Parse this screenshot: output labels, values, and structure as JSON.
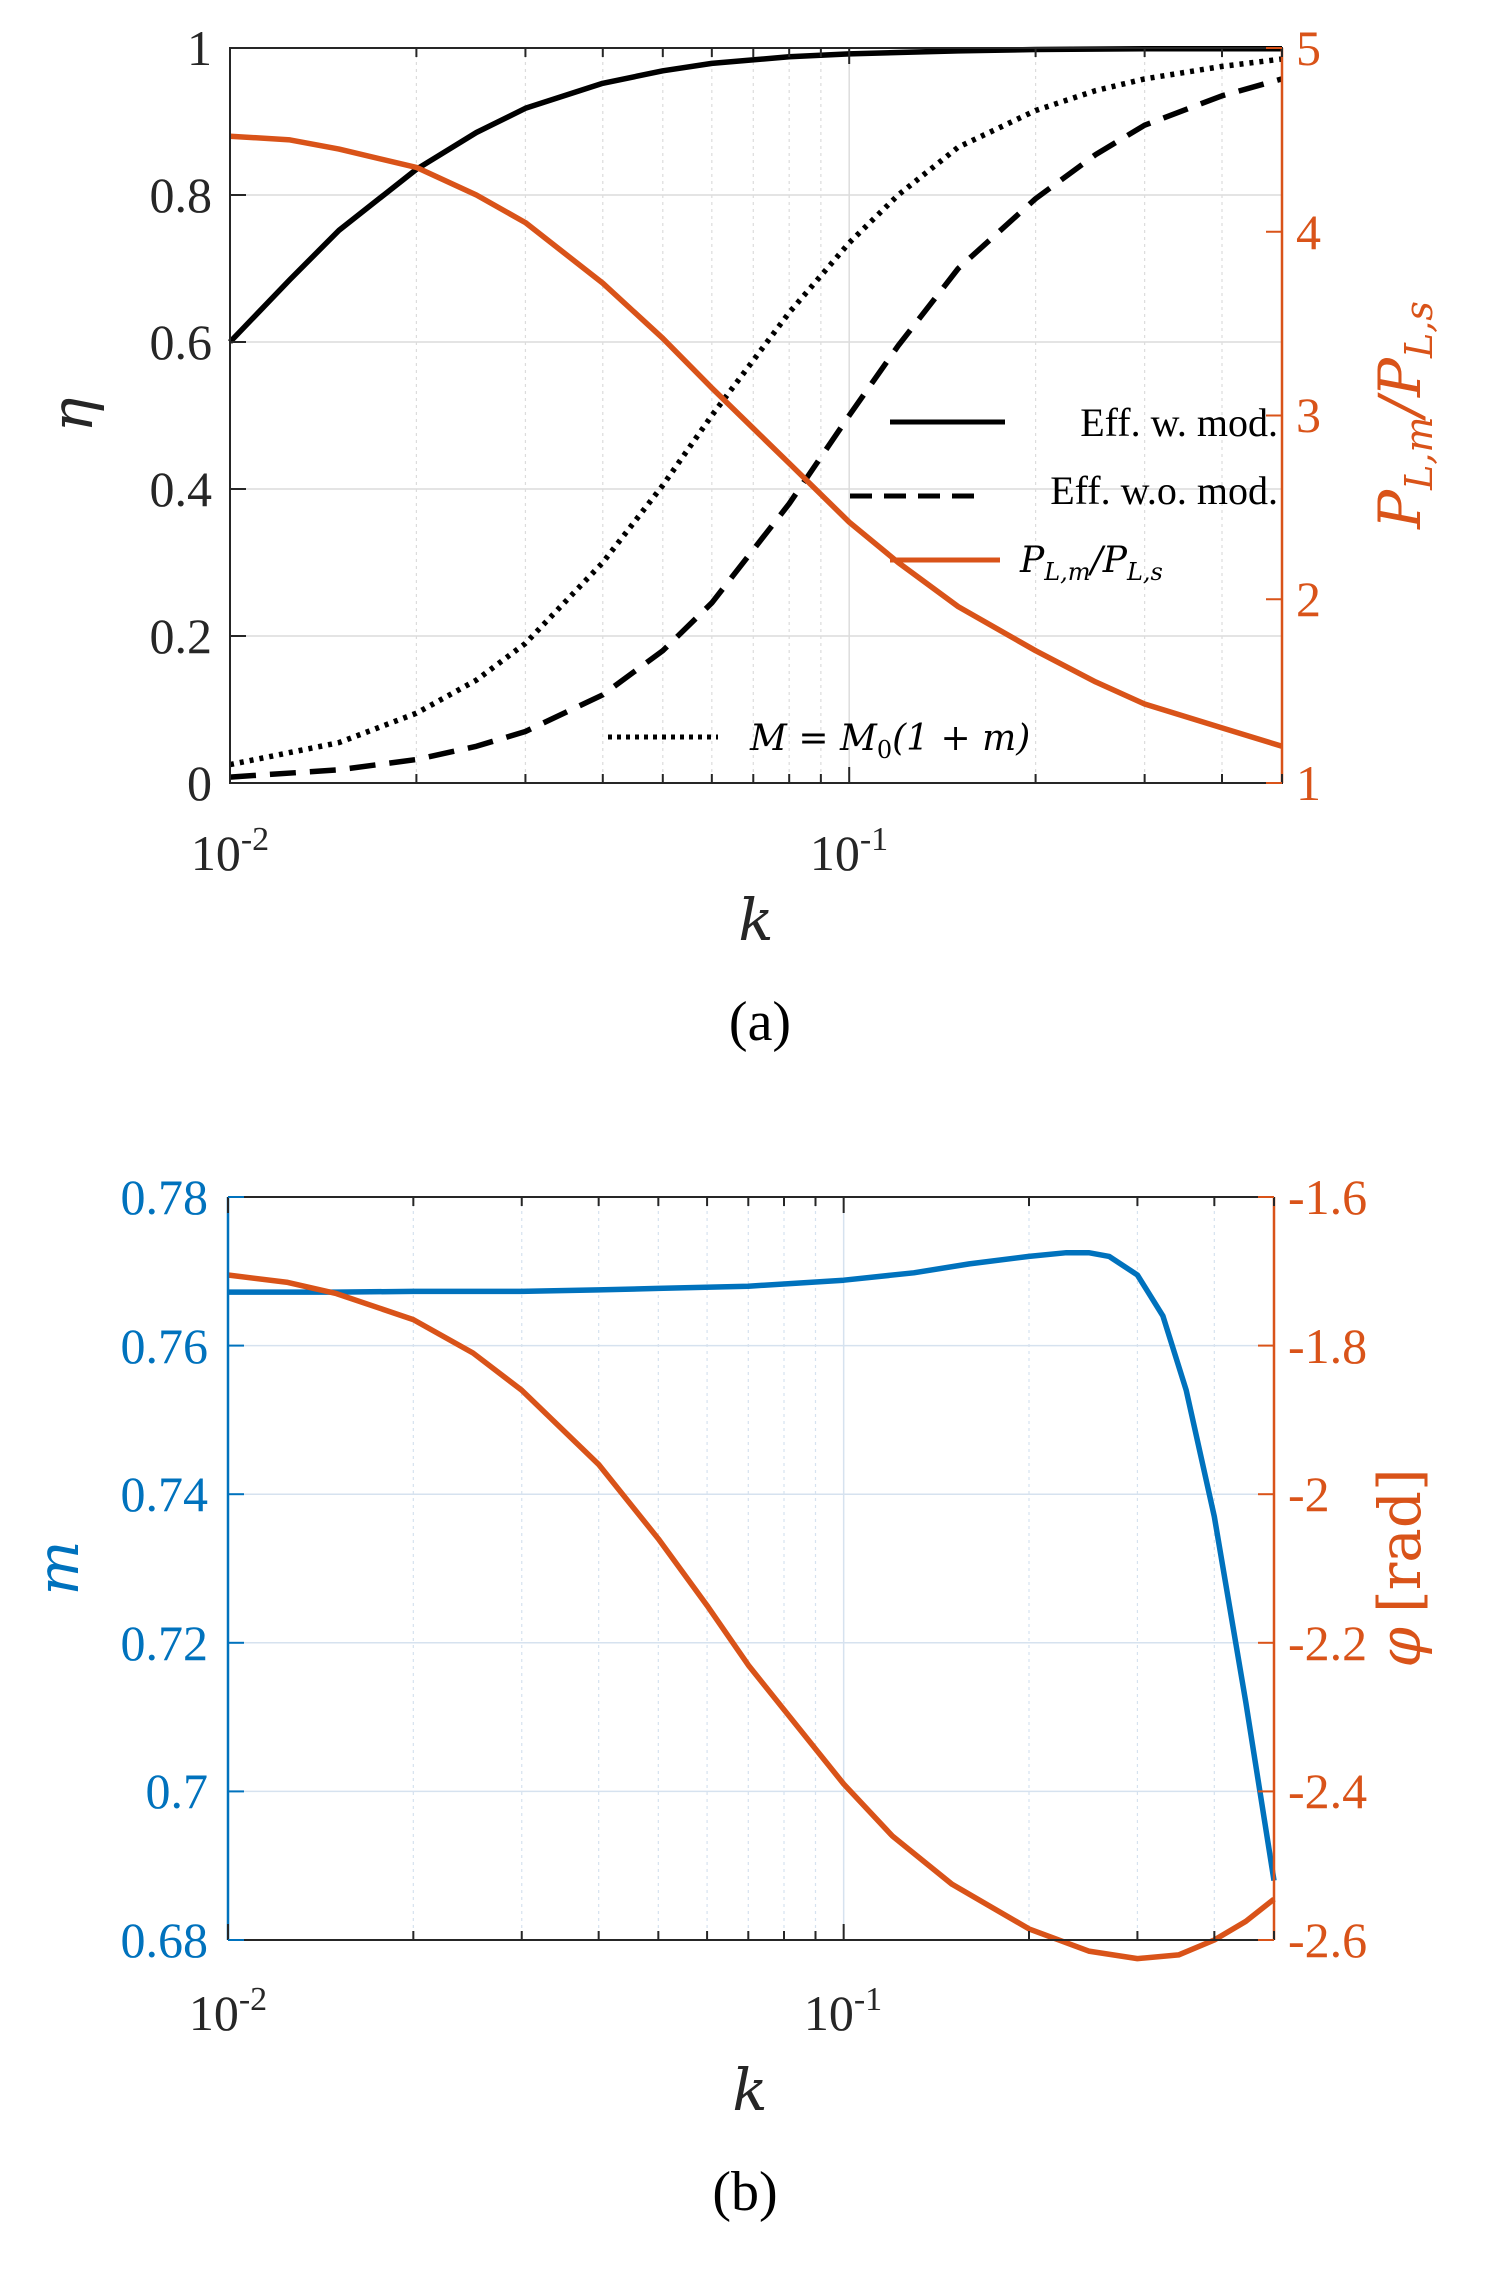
{
  "chart_data": [
    {
      "type": "line",
      "caption": "(a)",
      "xlabel": "k",
      "xscale": "log",
      "xlim": [
        0.01,
        0.5
      ],
      "x_ticks": [
        "10^-2",
        "10^-1"
      ],
      "x_tick_base": "10",
      "x_tick_exponents": [
        "-2",
        "-1"
      ],
      "ylabel_left": "η",
      "ylim_left": [
        0,
        1
      ],
      "y_ticks_left": [
        "0",
        "0.2",
        "0.4",
        "0.6",
        "0.8",
        "1"
      ],
      "ylabel_right": "P_L,m / P_L,s",
      "ylabel_right_parts": {
        "p": "P",
        "sub1": "L,m",
        "slash": "/",
        "sub2": "L,s"
      },
      "ylim_right": [
        1,
        5
      ],
      "y_ticks_right": [
        "1",
        "2",
        "3",
        "4",
        "5"
      ],
      "grid": true,
      "legend_position": "center-right",
      "legend": [
        "Eff. w. mod.",
        "Eff. w.o. mod.",
        "P_L,m/P_L,s"
      ],
      "annotation": "M = M0(1 + m)",
      "annotation_parts": {
        "lhs": "M",
        "eq": " = ",
        "m": "M",
        "sub": "0",
        "rhs": "(1 + m)"
      },
      "series": [
        {
          "name": "Eff. w. mod.",
          "axis": "left",
          "color": "#000000",
          "style": "solid",
          "x": [
            0.01,
            0.0125,
            0.015,
            0.02,
            0.025,
            0.03,
            0.04,
            0.05,
            0.06,
            0.08,
            0.1,
            0.15,
            0.2,
            0.3,
            0.4,
            0.5
          ],
          "values": [
            0.6,
            0.685,
            0.752,
            0.835,
            0.885,
            0.918,
            0.952,
            0.969,
            0.979,
            0.988,
            0.992,
            0.996,
            0.998,
            0.999,
            0.999,
            0.999
          ]
        },
        {
          "name": "Eff. w.o. mod.",
          "axis": "left",
          "color": "#000000",
          "style": "dashed",
          "x": [
            0.01,
            0.015,
            0.02,
            0.025,
            0.03,
            0.04,
            0.05,
            0.06,
            0.08,
            0.1,
            0.12,
            0.15,
            0.2,
            0.25,
            0.3,
            0.4,
            0.5
          ],
          "values": [
            0.008,
            0.018,
            0.032,
            0.05,
            0.07,
            0.12,
            0.18,
            0.245,
            0.38,
            0.5,
            0.595,
            0.7,
            0.795,
            0.855,
            0.895,
            0.935,
            0.958
          ]
        },
        {
          "name": "M = M0(1 + m)",
          "axis": "left",
          "color": "#000000",
          "style": "dotted",
          "x": [
            0.01,
            0.015,
            0.02,
            0.025,
            0.03,
            0.04,
            0.05,
            0.06,
            0.08,
            0.1,
            0.12,
            0.15,
            0.2,
            0.25,
            0.3,
            0.4,
            0.5
          ],
          "values": [
            0.025,
            0.055,
            0.095,
            0.14,
            0.19,
            0.3,
            0.405,
            0.5,
            0.64,
            0.735,
            0.8,
            0.865,
            0.915,
            0.942,
            0.958,
            0.975,
            0.985
          ]
        },
        {
          "name": "P_L,m/P_L,s",
          "axis": "right",
          "color": "#d95319",
          "style": "solid",
          "x": [
            0.01,
            0.0125,
            0.015,
            0.02,
            0.025,
            0.03,
            0.04,
            0.05,
            0.06,
            0.07,
            0.08,
            0.1,
            0.12,
            0.15,
            0.2,
            0.25,
            0.3,
            0.4,
            0.5
          ],
          "values": [
            4.52,
            4.5,
            4.45,
            4.35,
            4.2,
            4.05,
            3.72,
            3.42,
            3.15,
            2.93,
            2.74,
            2.42,
            2.2,
            1.96,
            1.72,
            1.55,
            1.43,
            1.3,
            1.2
          ]
        }
      ]
    },
    {
      "type": "line",
      "caption": "(b)",
      "xlabel": "k",
      "xscale": "log",
      "xlim": [
        0.01,
        0.5
      ],
      "x_ticks": [
        "10^-2",
        "10^-1"
      ],
      "x_tick_base": "10",
      "x_tick_exponents": [
        "-2",
        "-1"
      ],
      "ylabel_left": "m",
      "ylim_left": [
        0.68,
        0.78
      ],
      "y_ticks_left": [
        "0.68",
        "0.7",
        "0.72",
        "0.74",
        "0.76",
        "0.78"
      ],
      "ylabel_right": "φ [rad]",
      "ylabel_right_parts": {
        "phi": "φ",
        "unit": "[rad]"
      },
      "ylim_right": [
        -2.6,
        -1.6
      ],
      "y_ticks_right": [
        "-2.6",
        "-2.4",
        "-2.2",
        "-2",
        "-1.8",
        "-1.6"
      ],
      "grid": true,
      "series": [
        {
          "name": "m",
          "axis": "left",
          "color": "#0072bd",
          "style": "solid",
          "x": [
            0.01,
            0.015,
            0.02,
            0.03,
            0.04,
            0.05,
            0.07,
            0.1,
            0.13,
            0.16,
            0.2,
            0.23,
            0.25,
            0.27,
            0.3,
            0.33,
            0.36,
            0.4,
            0.45,
            0.5
          ],
          "values": [
            0.7672,
            0.7672,
            0.7673,
            0.7673,
            0.7675,
            0.7677,
            0.768,
            0.7688,
            0.7698,
            0.771,
            0.772,
            0.7725,
            0.7725,
            0.772,
            0.7695,
            0.764,
            0.754,
            0.737,
            0.712,
            0.688
          ]
        },
        {
          "name": "φ [rad]",
          "axis": "right",
          "color": "#d95319",
          "style": "solid",
          "x": [
            0.01,
            0.0125,
            0.015,
            0.02,
            0.025,
            0.03,
            0.04,
            0.05,
            0.06,
            0.07,
            0.08,
            0.1,
            0.12,
            0.15,
            0.2,
            0.25,
            0.3,
            0.35,
            0.4,
            0.45,
            0.5
          ],
          "values": [
            -1.705,
            -1.715,
            -1.73,
            -1.765,
            -1.81,
            -1.86,
            -1.96,
            -2.06,
            -2.15,
            -2.23,
            -2.29,
            -2.39,
            -2.46,
            -2.525,
            -2.585,
            -2.615,
            -2.625,
            -2.62,
            -2.6,
            -2.575,
            -2.545
          ]
        }
      ]
    }
  ]
}
